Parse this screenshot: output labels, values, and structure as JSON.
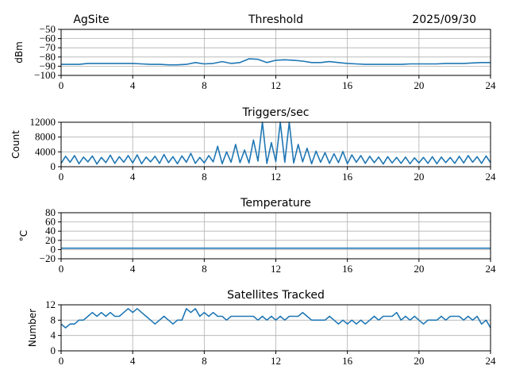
{
  "header": {
    "site": "AgSite",
    "date": "2025/09/30"
  },
  "colors": {
    "line": "#1f77b4",
    "grid": "#b0b0b0"
  },
  "chart_data": [
    {
      "type": "line",
      "title": "Threshold",
      "xlabel": "",
      "ylabel": "dBm",
      "xlim": [
        0,
        24
      ],
      "ylim": [
        -100,
        -50
      ],
      "xticks": [
        "0",
        "4",
        "8",
        "12",
        "16",
        "20",
        "24"
      ],
      "yticks": [
        "−100",
        "−90",
        "−80",
        "−70",
        "−60",
        "−50"
      ],
      "ytick_values": [
        -100,
        -90,
        -80,
        -70,
        -60,
        -50
      ],
      "grid": true,
      "x_step": 0.5,
      "values": [
        -88,
        -88,
        -88,
        -87,
        -87,
        -87,
        -87,
        -87,
        -87,
        -87.5,
        -88,
        -88,
        -88.5,
        -88.5,
        -88,
        -86,
        -87.5,
        -87,
        -85,
        -87,
        -86,
        -82,
        -82.5,
        -86,
        -83.5,
        -83,
        -83.5,
        -84.5,
        -86,
        -86,
        -85,
        -86,
        -87,
        -87.5,
        -88,
        -88,
        -88,
        -88,
        -88,
        -87.5,
        -87.5,
        -87.5,
        -87.5,
        -87,
        -87,
        -87,
        -86.5,
        -86,
        -86
      ]
    },
    {
      "type": "line",
      "title": "Triggers/sec",
      "xlabel": "",
      "ylabel": "Count",
      "xlim": [
        0,
        24
      ],
      "ylim": [
        0,
        12000
      ],
      "xticks": [
        "0",
        "4",
        "8",
        "12",
        "16",
        "20",
        "24"
      ],
      "yticks": [
        "0",
        "4000",
        "8000",
        "12000"
      ],
      "ytick_values": [
        0,
        4000,
        8000,
        12000
      ],
      "grid": true,
      "x_step": 0.25,
      "values": [
        900,
        2800,
        1200,
        3000,
        800,
        2600,
        1300,
        2900,
        700,
        2500,
        1100,
        3100,
        900,
        2700,
        1200,
        3000,
        1000,
        3200,
        800,
        2600,
        1300,
        2800,
        900,
        3300,
        1100,
        2700,
        800,
        2900,
        1200,
        3600,
        900,
        2500,
        1000,
        3000,
        1300,
        5500,
        800,
        4000,
        1200,
        6000,
        1100,
        4500,
        1000,
        7200,
        1500,
        12000,
        900,
        6500,
        1400,
        12000,
        1200,
        12000,
        1000,
        6000,
        1300,
        5000,
        800,
        4200,
        1200,
        3800,
        900,
        3500,
        1100,
        4100,
        800,
        3200,
        1200,
        3000,
        900,
        2800,
        1100,
        2600,
        700,
        2700,
        1000,
        2500,
        900,
        2600,
        800,
        2400,
        1000,
        2500,
        900,
        2700,
        800,
        2600,
        1100,
        2500,
        900,
        2800,
        1000,
        3000,
        1200,
        2700,
        900,
        2900,
        1100
      ]
    },
    {
      "type": "line",
      "title": "Temperature",
      "xlabel": "",
      "ylabel": "°C",
      "xlim": [
        0,
        24
      ],
      "ylim": [
        -20,
        80
      ],
      "xticks": [
        "0",
        "4",
        "8",
        "12",
        "16",
        "20",
        "24"
      ],
      "yticks": [
        "−20",
        "0",
        "20",
        "40",
        "60",
        "80"
      ],
      "ytick_values": [
        -20,
        0,
        20,
        40,
        60,
        80
      ],
      "grid": true,
      "x_step": 24,
      "values": [
        3,
        3
      ]
    },
    {
      "type": "line",
      "title": "Satellites Tracked",
      "xlabel": "",
      "ylabel": "Number",
      "xlim": [
        0,
        24
      ],
      "ylim": [
        0,
        12
      ],
      "xticks": [
        "0",
        "4",
        "8",
        "12",
        "16",
        "20",
        "24"
      ],
      "yticks": [
        "0",
        "4",
        "8",
        "12"
      ],
      "ytick_values": [
        0,
        4,
        8,
        12
      ],
      "grid": true,
      "x_step": 0.25,
      "values": [
        7,
        6,
        7,
        7,
        8,
        8,
        9,
        10,
        9,
        10,
        9,
        10,
        9,
        9,
        10,
        11,
        10,
        11,
        10,
        9,
        8,
        7,
        8,
        9,
        8,
        7,
        8,
        8,
        11,
        10,
        11,
        9,
        10,
        9,
        10,
        9,
        9,
        8,
        9,
        9,
        9,
        9,
        9,
        9,
        8,
        9,
        8,
        9,
        8,
        9,
        8,
        9,
        9,
        9,
        10,
        9,
        8,
        8,
        8,
        8,
        9,
        8,
        7,
        8,
        7,
        8,
        7,
        8,
        7,
        8,
        9,
        8,
        9,
        9,
        9,
        10,
        8,
        9,
        8,
        9,
        8,
        7,
        8,
        8,
        8,
        9,
        8,
        9,
        9,
        9,
        8,
        9,
        8,
        9,
        7,
        8,
        6
      ]
    }
  ]
}
